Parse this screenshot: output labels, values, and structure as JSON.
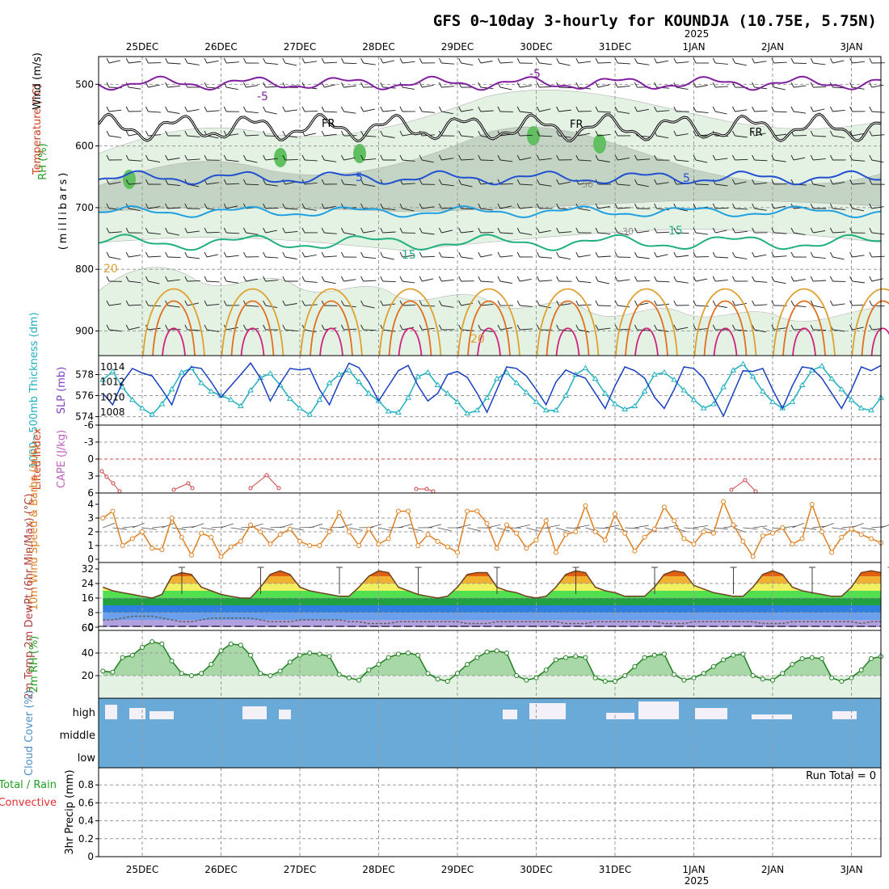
{
  "title": "GFS 0~10day 3-hourly for KOUNDJA (10.75E, 5.75N)",
  "year_label": "2025",
  "dates": [
    "25DEC",
    "26DEC",
    "27DEC",
    "28DEC",
    "29DEC",
    "30DEC",
    "31DEC",
    "1JAN",
    "2JAN",
    "3JAN"
  ],
  "panels": {
    "upper_air": {
      "ylabels": [
        {
          "text": "Wind (m/s)",
          "color": "#000000"
        },
        {
          "text": "Temperature (°C)",
          "color": "#d04020"
        },
        {
          "text": "RH (%)",
          "color": "#20a020"
        },
        {
          "text": "(millibars)",
          "color": "#000000"
        }
      ],
      "pressure_ticks": [
        500,
        600,
        700,
        800,
        900
      ],
      "contour_labels": [
        "-5",
        "FR",
        "5",
        "15",
        "20",
        "30",
        "50"
      ],
      "fr_label": "FR"
    },
    "thickness_slp": {
      "ylabel_left": "1000~500mb Thickness (dm)",
      "ylabel_right": "SLP (mb)",
      "left_ticks": [
        574,
        576,
        578
      ],
      "right_ticks": [
        1008,
        1010,
        1012,
        1014
      ],
      "thickness_color": "#20b0c0",
      "slp_color": "#1840c0"
    },
    "stability": {
      "ylabel_left": "Lifted Index",
      "ylabel_right": "CAPE (J/kg)",
      "ticks": [
        -6,
        -3,
        0,
        3,
        6
      ]
    },
    "wind10m": {
      "ylabel": "10m Wind Speed & Barbs (m/s)",
      "ticks": [
        0,
        1,
        2,
        3,
        4
      ],
      "color": "#e08020"
    },
    "temp2m": {
      "ylabel": "2m Temp 2m DewPt (6hr Min/Max) (°C)",
      "ticks": [
        0,
        8,
        16,
        24,
        32
      ],
      "bottom_tick_label": "60"
    },
    "rh2m": {
      "ylabel": "2m RH (%)",
      "ticks": [
        20,
        40
      ],
      "color": "#20a020"
    },
    "cloud": {
      "ylabel": "Cloud Cover (%)",
      "levels": [
        "high",
        "middle",
        "low"
      ],
      "color": "#6aaad8"
    },
    "precip": {
      "ylabel": "3hr Precip (mm)",
      "ylabel_total": "Total / Rain",
      "ylabel_conv": "Convective",
      "ticks": [
        "0",
        "0.2",
        "0.4",
        "0.6",
        "0.8"
      ],
      "run_total": "Run Total = 0"
    }
  },
  "chart_data": [
    {
      "type": "line",
      "name": "Thickness",
      "x_unit": "hours since 24 Dec 12Z",
      "x": [
        0,
        3,
        6,
        9,
        12,
        15,
        18,
        21,
        24,
        27,
        30,
        33,
        36,
        39,
        42,
        45,
        48,
        51,
        54,
        57,
        60,
        63,
        66,
        69,
        72,
        75,
        78,
        81,
        84,
        87,
        90,
        93,
        96,
        99,
        102,
        105,
        108,
        111,
        114,
        117,
        120,
        123,
        126,
        129,
        132,
        135,
        138,
        141,
        144,
        147,
        150,
        153,
        156,
        159,
        162,
        165,
        168,
        171,
        174,
        177,
        180,
        183,
        186,
        189,
        192,
        195,
        198,
        201,
        204,
        207,
        210,
        213,
        216,
        219,
        222,
        225,
        228,
        231,
        234,
        237
      ],
      "series": [
        {
          "name": "1000~500mb Thickness (dm)",
          "values": [
            577.5,
            578.3,
            576.8,
            575.6,
            574.8,
            574.2,
            575.2,
            576.6,
            578.2,
            578.6,
            577.2,
            576.4,
            576.0,
            575.6,
            575.0,
            576.5,
            577.7,
            578.1,
            577.0,
            575.7,
            574.8,
            574.2,
            575.6,
            577.2,
            578.0,
            578.4,
            577.3,
            576.2,
            575.5,
            574.5,
            574.4,
            575.8,
            577.8,
            578.2,
            577.0,
            576.2,
            575.4,
            574.3,
            574.6,
            575.8,
            577.6,
            578.2,
            577.2,
            576.3,
            575.4,
            574.6,
            574.6,
            576.0,
            578.0,
            578.6,
            577.6,
            576.2,
            575.2,
            574.7,
            575.0,
            576.4,
            578.0,
            578.2,
            577.5,
            576.5,
            575.6,
            574.8,
            575.2,
            576.8,
            578.4,
            579.0,
            577.8,
            576.4,
            575.4,
            574.8,
            575.4,
            577.0,
            578.4,
            578.8,
            577.6,
            576.6,
            575.6,
            574.8,
            574.6,
            575.8
          ]
        },
        {
          "name": "SLP (mb)",
          "values": [
            1010.5,
            1009.0,
            1012.0,
            1013.8,
            1013.2,
            1012.8,
            1011.0,
            1009.0,
            1012.5,
            1014.0,
            1013.8,
            1012.0,
            1010.0,
            1011.5,
            1013.0,
            1014.5,
            1012.5,
            1009.5,
            1011.8,
            1013.8,
            1013.6,
            1013.8,
            1011.0,
            1009.0,
            1012.0,
            1014.5,
            1013.9,
            1012.0,
            1009.5,
            1011.5,
            1013.5,
            1014.2,
            1011.5,
            1009.5,
            1010.5,
            1013.0,
            1013.4,
            1012.6,
            1010.5,
            1008.0,
            1011.0,
            1014.0,
            1013.8,
            1012.8,
            1011.0,
            1009.0,
            1012.0,
            1013.6,
            1013.0,
            1012.5,
            1010.5,
            1008.5,
            1011.5,
            1014.0,
            1013.5,
            1012.5,
            1010.0,
            1008.5,
            1011.0,
            1014.0,
            1013.8,
            1012.5,
            1010.0,
            1007.5,
            1010.5,
            1013.5,
            1013.4,
            1013.8,
            1011.0,
            1008.5,
            1011.5,
            1014.0,
            1013.8,
            1012.5,
            1010.5,
            1008.5,
            1011.0,
            1014.0,
            1013.5,
            1014.2
          ]
        }
      ]
    },
    {
      "type": "line",
      "name": "10m Wind",
      "x_unit": "hours since 24 Dec 12Z",
      "x": [
        0,
        3,
        6,
        9,
        12,
        15,
        18,
        21,
        24,
        27,
        30,
        33,
        36,
        39,
        42,
        45,
        48,
        51,
        54,
        57,
        60,
        63,
        66,
        69,
        72,
        75,
        78,
        81,
        84,
        87,
        90,
        93,
        96,
        99,
        102,
        105,
        108,
        111,
        114,
        117,
        120,
        123,
        126,
        129,
        132,
        135,
        138,
        141,
        144,
        147,
        150,
        153,
        156,
        159,
        162,
        165,
        168,
        171,
        174,
        177,
        180,
        183,
        186,
        189,
        192,
        195,
        198,
        201,
        204,
        207,
        210,
        213,
        216,
        219,
        222,
        225,
        228,
        231,
        234,
        237
      ],
      "series": [
        {
          "name": "10m Wind Speed (m/s)",
          "values": [
            3.0,
            3.5,
            1.0,
            1.5,
            2.0,
            0.8,
            0.7,
            3.0,
            1.6,
            0.3,
            1.9,
            1.6,
            0.2,
            0.9,
            1.3,
            2.5,
            2.0,
            1.1,
            1.8,
            2.2,
            1.3,
            1.0,
            1.0,
            2.0,
            3.4,
            2.0,
            1.0,
            2.2,
            1.1,
            1.5,
            3.5,
            3.5,
            1.0,
            1.8,
            1.3,
            0.9,
            0.5,
            3.5,
            3.5,
            2.6,
            0.8,
            2.5,
            1.9,
            0.8,
            1.4,
            2.8,
            0.5,
            1.8,
            2.0,
            3.9,
            2.0,
            1.4,
            3.3,
            1.9,
            0.6,
            1.6,
            2.2,
            3.8,
            2.8,
            1.5,
            1.1,
            2.0,
            1.9,
            4.2,
            2.5,
            1.3,
            0.2,
            1.7,
            1.9,
            2.3,
            1.1,
            1.5,
            4.0,
            2.0,
            0.5,
            1.6,
            2.2,
            1.8,
            1.5,
            1.2
          ]
        }
      ]
    },
    {
      "type": "area",
      "name": "2m Temp",
      "x_unit": "hours since 24 Dec 12Z",
      "x": [
        0,
        3,
        6,
        9,
        12,
        15,
        18,
        21,
        24,
        27,
        30,
        33,
        36,
        39,
        42,
        45,
        48,
        51,
        54,
        57,
        60,
        63,
        66,
        69,
        72,
        75,
        78,
        81,
        84,
        87,
        90,
        93,
        96,
        99,
        102,
        105,
        108,
        111,
        114,
        117,
        120,
        123,
        126,
        129,
        132,
        135,
        138,
        141,
        144,
        147,
        150,
        153,
        156,
        159,
        162,
        165,
        168,
        171,
        174,
        177,
        180,
        183,
        186,
        189,
        192,
        195,
        198,
        201,
        204,
        207,
        210,
        213,
        216,
        219,
        222,
        225,
        228,
        231,
        234,
        237
      ],
      "series": [
        {
          "name": "2m Temp (°C)",
          "values": [
            22,
            20,
            19,
            18,
            17,
            16,
            18,
            28,
            30,
            29,
            22,
            20,
            18,
            17,
            16,
            16,
            22,
            29,
            31,
            29,
            22,
            20,
            19,
            18,
            17,
            17,
            22,
            28,
            31,
            30,
            22,
            20,
            18,
            17,
            16,
            17,
            22,
            29,
            30,
            30,
            22,
            20,
            19,
            17,
            16,
            17,
            22,
            29,
            31,
            30,
            22,
            20,
            19,
            17,
            17,
            17,
            22,
            29,
            31,
            30,
            23,
            21,
            19,
            18,
            17,
            17,
            22,
            29,
            31,
            29,
            22,
            20,
            19,
            18,
            17,
            17,
            22,
            30,
            31,
            30
          ]
        },
        {
          "name": "2m DewPt (°C)",
          "values": [
            4,
            4,
            5,
            6,
            6,
            6,
            5,
            4,
            3,
            3,
            4,
            5,
            5,
            5,
            5,
            5,
            4,
            3,
            3,
            3,
            4,
            4,
            4,
            4,
            4,
            3,
            3,
            2,
            2,
            2,
            3,
            3,
            3,
            3,
            3,
            3,
            3,
            2,
            2,
            2,
            3,
            3,
            3,
            3,
            3,
            3,
            3,
            2,
            2,
            2,
            3,
            3,
            3,
            3,
            3,
            3,
            3,
            2,
            2,
            2,
            3,
            3,
            3,
            3,
            3,
            3,
            3,
            2,
            2,
            2,
            3,
            3,
            3,
            3,
            3,
            3,
            3,
            2,
            3,
            3
          ]
        }
      ]
    },
    {
      "type": "area",
      "name": "2m RH",
      "x_unit": "hours since 24 Dec 12Z",
      "x": [
        0,
        3,
        6,
        9,
        12,
        15,
        18,
        21,
        24,
        27,
        30,
        33,
        36,
        39,
        42,
        45,
        48,
        51,
        54,
        57,
        60,
        63,
        66,
        69,
        72,
        75,
        78,
        81,
        84,
        87,
        90,
        93,
        96,
        99,
        102,
        105,
        108,
        111,
        114,
        117,
        120,
        123,
        126,
        129,
        132,
        135,
        138,
        141,
        144,
        147,
        150,
        153,
        156,
        159,
        162,
        165,
        168,
        171,
        174,
        177,
        180,
        183,
        186,
        189,
        192,
        195,
        198,
        201,
        204,
        207,
        210,
        213,
        216,
        219,
        222,
        225,
        228,
        231,
        234,
        237
      ],
      "series": [
        {
          "name": "2m RH (%)",
          "values": [
            24,
            23,
            36,
            38,
            45,
            50,
            48,
            33,
            22,
            20,
            22,
            30,
            42,
            48,
            47,
            38,
            22,
            20,
            24,
            32,
            38,
            40,
            39,
            37,
            21,
            18,
            16,
            25,
            30,
            36,
            39,
            40,
            38,
            22,
            17,
            15,
            22,
            30,
            36,
            41,
            42,
            40,
            20,
            16,
            18,
            25,
            34,
            36,
            37,
            36,
            18,
            15,
            15,
            20,
            28,
            36,
            38,
            39,
            21,
            16,
            18,
            22,
            28,
            34,
            38,
            39,
            20,
            17,
            16,
            22,
            30,
            35,
            36,
            35,
            18,
            15,
            18,
            25,
            35,
            37
          ]
        }
      ]
    },
    {
      "type": "bar",
      "name": "3hr Precip",
      "series": [
        {
          "name": "3hr Precip (mm)",
          "values": []
        }
      ],
      "ylim": [
        0,
        0.9
      ]
    }
  ]
}
